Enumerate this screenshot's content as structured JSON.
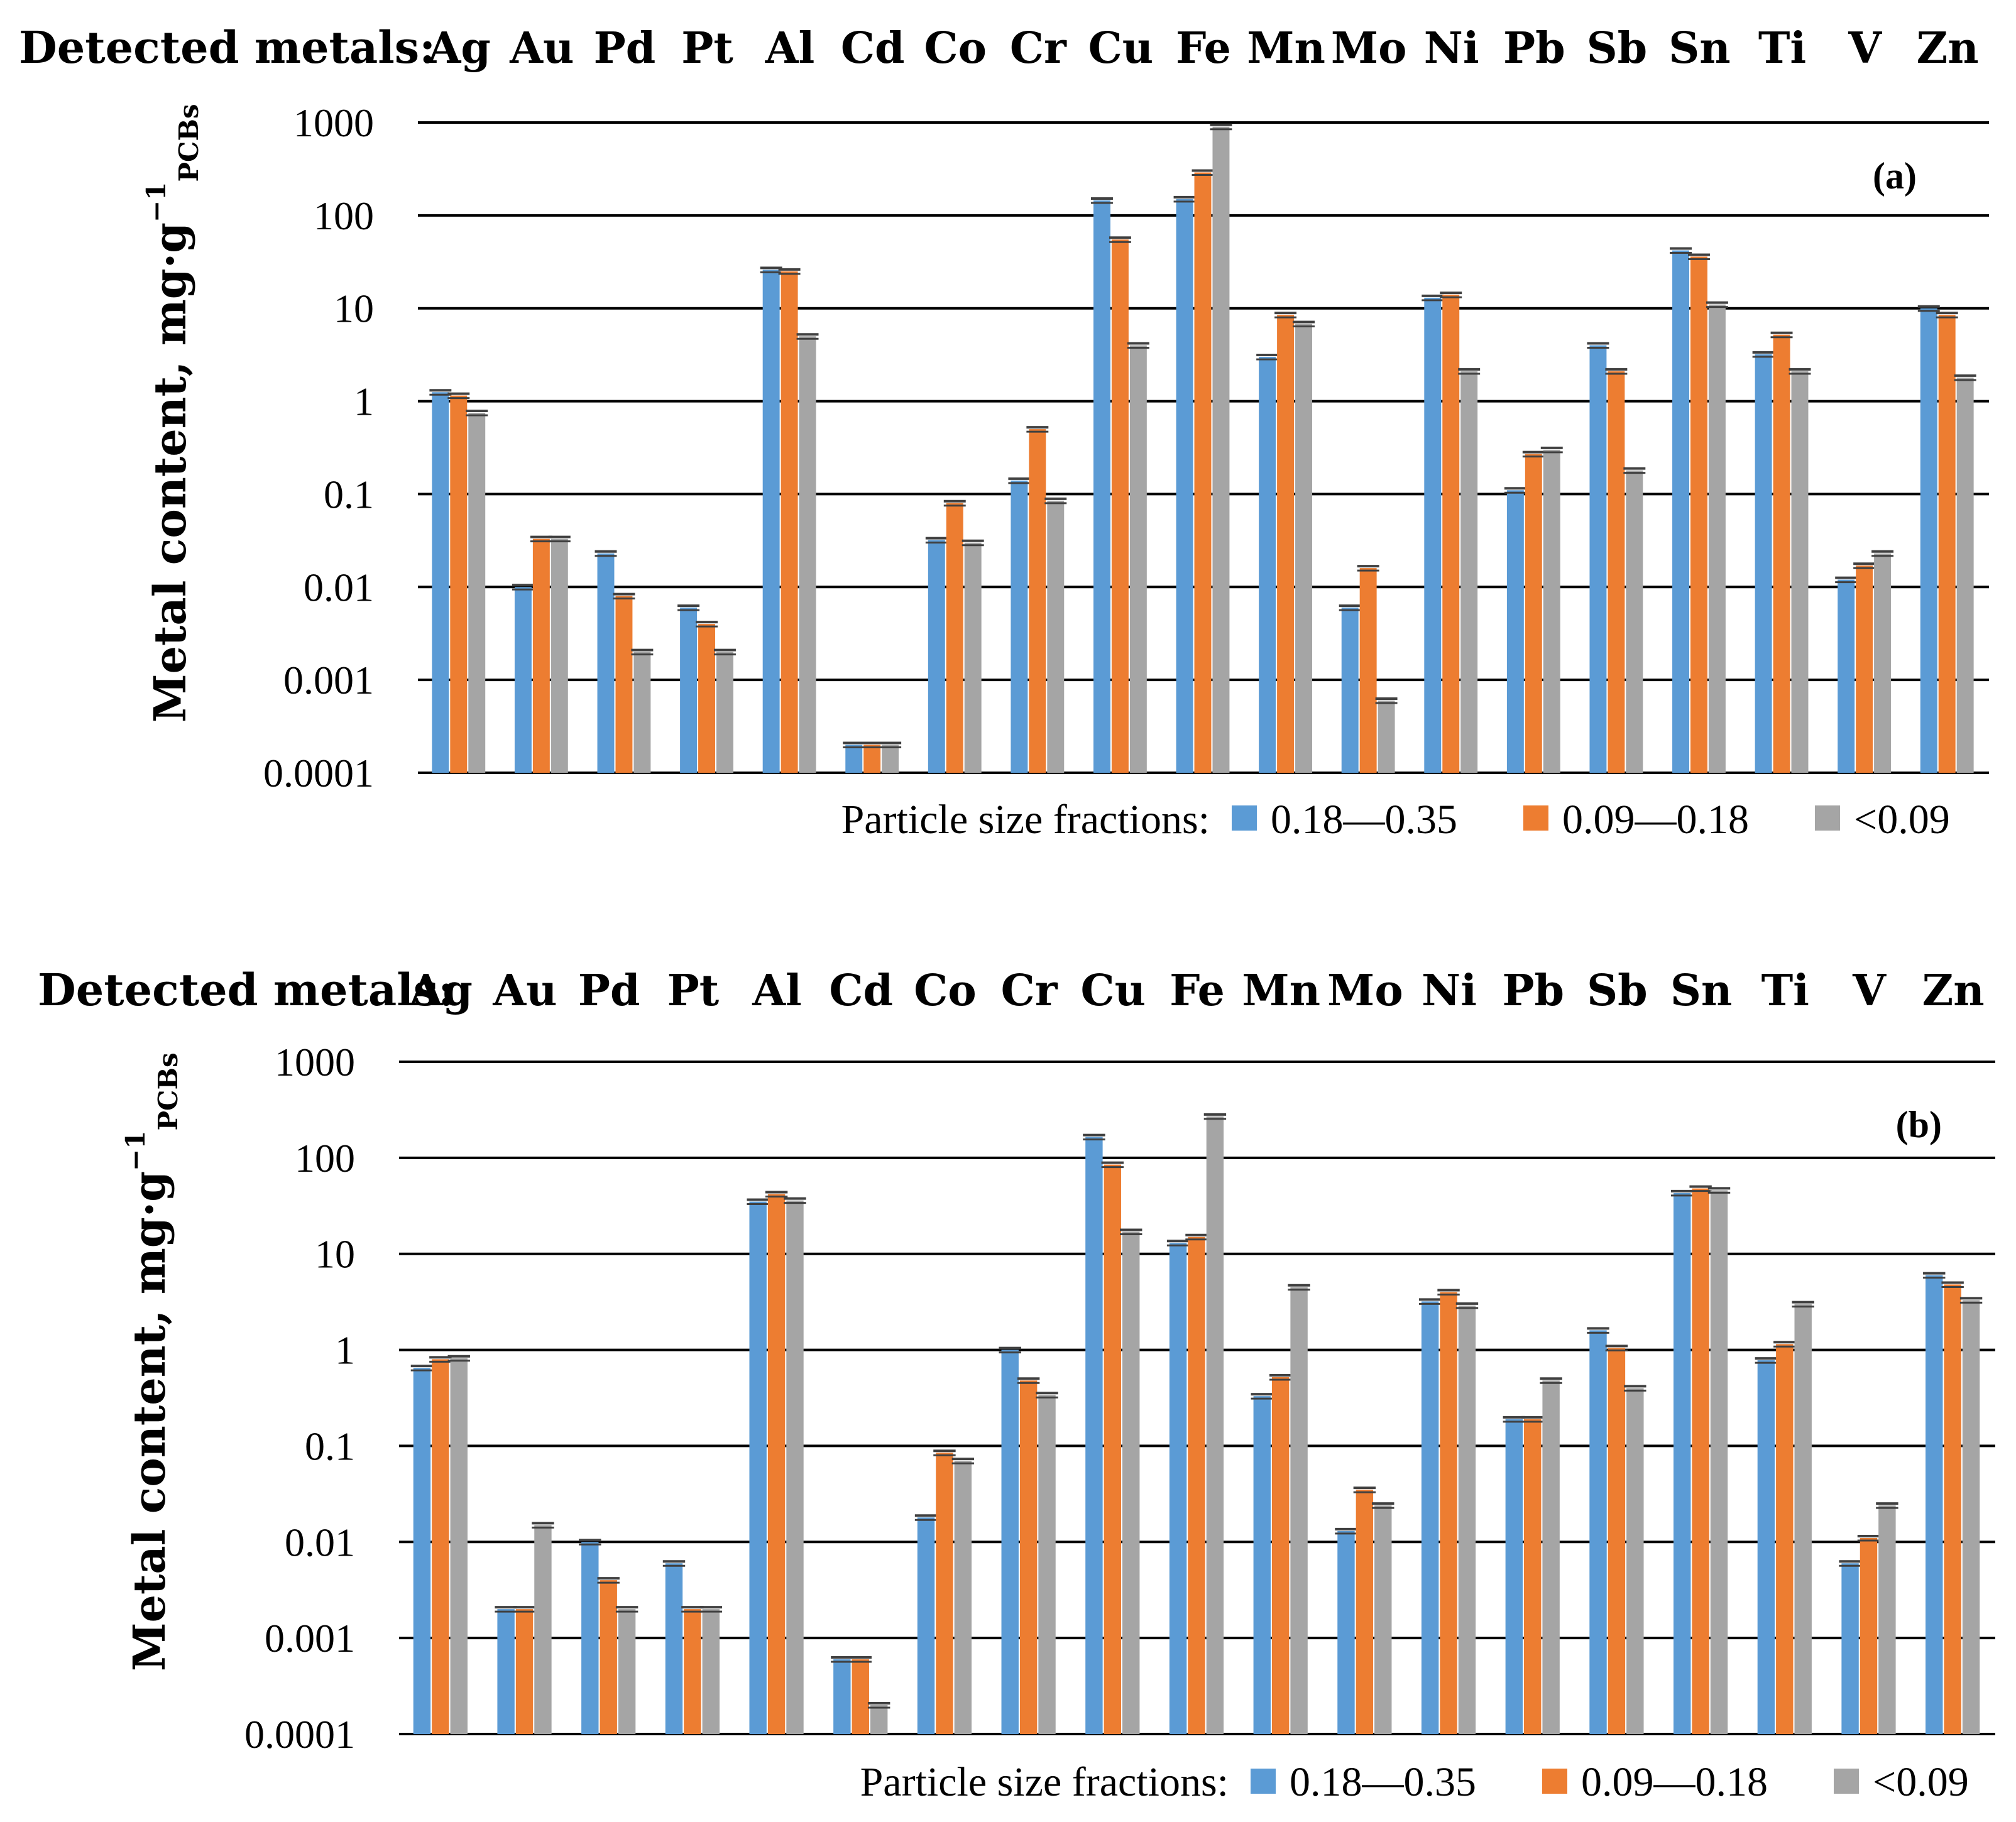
{
  "legend_title": "Particle size fractions:",
  "series_names": [
    "0.18—0.35",
    "0.09—0.18",
    "<0.09"
  ],
  "colors": {
    "series": [
      "#5B9BD5",
      "#ED7D31",
      "#A5A5A5"
    ],
    "grid": "#000000",
    "errorbar": "#404040"
  },
  "chart_data": [
    {
      "type": "bar",
      "panel_label": "(a)",
      "header_label": "Detected metals:",
      "categories": [
        "Ag",
        "Au",
        "Pd",
        "Pt",
        "Al",
        "Cd",
        "Co",
        "Cr",
        "Cu",
        "Fe",
        "Mn",
        "Mo",
        "Ni",
        "Pb",
        "Sb",
        "Sn",
        "Ti",
        "V",
        "Zn"
      ],
      "yscale": "log",
      "ylim": [
        0.0001,
        1000
      ],
      "yticks": [
        "0.0001",
        "0.001",
        "0.01",
        "0.1",
        "1",
        "10",
        "100",
        "1000"
      ],
      "ylabel_main": "Metal content, mg·g",
      "ylabel_sup": "−1",
      "ylabel_sub": "PCBs",
      "series": [
        {
          "name": "0.18—0.35",
          "values": [
            1.25,
            0.01,
            0.023,
            0.006,
            26,
            0.0002,
            0.032,
            0.14,
            145,
            150,
            3.0,
            0.006,
            13,
            0.11,
            4.0,
            42,
            3.2,
            0.012,
            10
          ]
        },
        {
          "name": "0.09—0.18",
          "values": [
            1.15,
            0.033,
            0.008,
            0.004,
            25,
            0.0002,
            0.08,
            0.5,
            55,
            290,
            8.5,
            0.016,
            14,
            0.27,
            2.1,
            36,
            5.2,
            0.017,
            8.5
          ]
        },
        {
          "name": "<0.09",
          "values": [
            0.75,
            0.033,
            0.002,
            0.002,
            5.0,
            0.0002,
            0.03,
            0.085,
            4.0,
            900,
            6.8,
            0.0006,
            2.1,
            0.3,
            0.18,
            11,
            2.1,
            0.023,
            1.8
          ]
        }
      ]
    },
    {
      "type": "bar",
      "panel_label": "(b)",
      "header_label": "Detected metals:",
      "categories": [
        "Ag",
        "Au",
        "Pd",
        "Pt",
        "Al",
        "Cd",
        "Co",
        "Cr",
        "Cu",
        "Fe",
        "Mn",
        "Mo",
        "Ni",
        "Pb",
        "Sb",
        "Sn",
        "Ti",
        "V",
        "Zn"
      ],
      "yscale": "log",
      "ylim": [
        0.0001,
        1000
      ],
      "yticks": [
        "0.0001",
        "0.001",
        "0.01",
        "0.1",
        "1",
        "10",
        "100",
        "1000"
      ],
      "ylabel_main": "Metal content, mg·g",
      "ylabel_sup": "−1",
      "ylabel_sub": "PCBs",
      "series": [
        {
          "name": "0.18—0.35",
          "values": [
            0.65,
            0.002,
            0.01,
            0.006,
            35,
            0.0006,
            0.018,
            1.0,
            165,
            13,
            0.33,
            0.013,
            3.2,
            0.19,
            1.6,
            43,
            0.78,
            0.006,
            6.0
          ]
        },
        {
          "name": "0.09—0.18",
          "values": [
            0.8,
            0.002,
            0.004,
            0.002,
            42,
            0.0006,
            0.085,
            0.48,
            85,
            15,
            0.52,
            0.035,
            4.0,
            0.19,
            1.05,
            48,
            1.15,
            0.011,
            4.8
          ]
        },
        {
          "name": "<0.09",
          "values": [
            0.82,
            0.015,
            0.002,
            0.002,
            36,
            0.0002,
            0.07,
            0.34,
            17,
            270,
            4.5,
            0.024,
            2.9,
            0.48,
            0.4,
            46,
            3.0,
            0.024,
            3.3
          ]
        }
      ]
    }
  ]
}
